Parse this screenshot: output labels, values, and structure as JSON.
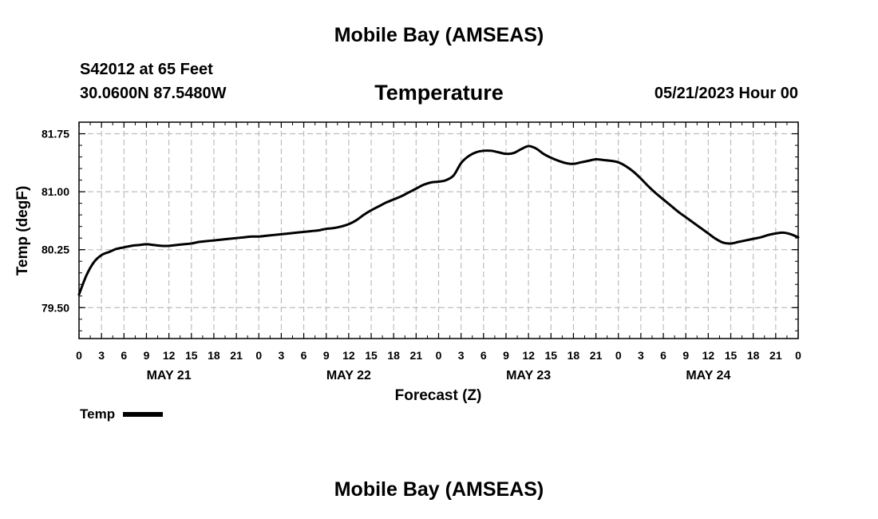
{
  "header": {
    "title": "Mobile Bay (AMSEAS)",
    "station": "S42012 at 65 Feet",
    "coordinates": "30.0600N  87.5480W",
    "variable": "Temperature",
    "run_time": "05/21/2023 Hour 00"
  },
  "footer": {
    "title": "Mobile Bay (AMSEAS)"
  },
  "legend": {
    "label": "Temp",
    "color": "#000000"
  },
  "chart_data": {
    "type": "line",
    "xlabel": "Forecast (Z)",
    "ylabel": "Temp (degF)",
    "xlim": [
      0,
      96
    ],
    "ylim": [
      79.1,
      81.9
    ],
    "yticks": [
      79.5,
      80.25,
      81.0,
      81.75
    ],
    "ytick_labels": [
      "79.50",
      "80.25",
      "81.00",
      "81.75"
    ],
    "xticks": [
      0,
      3,
      6,
      9,
      12,
      15,
      18,
      21,
      24,
      27,
      30,
      33,
      36,
      39,
      42,
      45,
      48,
      51,
      54,
      57,
      60,
      63,
      66,
      69,
      72,
      75,
      78,
      81,
      84,
      87,
      90,
      93,
      96
    ],
    "xtick_labels": [
      "0",
      "3",
      "6",
      "9",
      "12",
      "15",
      "18",
      "21",
      "0",
      "3",
      "6",
      "9",
      "12",
      "15",
      "18",
      "21",
      "0",
      "3",
      "6",
      "9",
      "12",
      "15",
      "18",
      "21",
      "0",
      "3",
      "6",
      "9",
      "12",
      "15",
      "18",
      "21",
      "0"
    ],
    "day_labels": [
      {
        "x": 12,
        "label": "MAY 21"
      },
      {
        "x": 36,
        "label": "MAY 22"
      },
      {
        "x": 60,
        "label": "MAY 23"
      },
      {
        "x": 84,
        "label": "MAY 24"
      }
    ],
    "grid": true,
    "series": [
      {
        "name": "Temp",
        "color": "#000000",
        "x": [
          0,
          1,
          2,
          3,
          4,
          5,
          6,
          7,
          8,
          9,
          10,
          11,
          12,
          13,
          14,
          15,
          16,
          17,
          18,
          19,
          20,
          21,
          22,
          23,
          24,
          25,
          26,
          27,
          28,
          29,
          30,
          31,
          32,
          33,
          34,
          35,
          36,
          37,
          38,
          39,
          40,
          41,
          42,
          43,
          44,
          45,
          46,
          47,
          48,
          49,
          50,
          51,
          52,
          53,
          54,
          55,
          56,
          57,
          58,
          59,
          60,
          61,
          62,
          63,
          64,
          65,
          66,
          67,
          68,
          69,
          70,
          71,
          72,
          73,
          74,
          75,
          76,
          77,
          78,
          79,
          80,
          81,
          82,
          83,
          84,
          85,
          86,
          87,
          88,
          89,
          90,
          91,
          92,
          93,
          94,
          95,
          96
        ],
        "values": [
          79.67,
          79.92,
          80.09,
          80.18,
          80.22,
          80.26,
          80.28,
          80.3,
          80.31,
          80.32,
          80.31,
          80.3,
          80.3,
          80.31,
          80.32,
          80.33,
          80.35,
          80.36,
          80.37,
          80.38,
          80.39,
          80.4,
          80.41,
          80.42,
          80.42,
          80.43,
          80.44,
          80.45,
          80.46,
          80.47,
          80.48,
          80.49,
          80.5,
          80.52,
          80.53,
          80.55,
          80.58,
          80.63,
          80.7,
          80.76,
          80.81,
          80.86,
          80.9,
          80.94,
          80.99,
          81.04,
          81.09,
          81.12,
          81.13,
          81.15,
          81.21,
          81.37,
          81.46,
          81.51,
          81.53,
          81.53,
          81.51,
          81.49,
          81.5,
          81.55,
          81.59,
          81.56,
          81.49,
          81.44,
          81.4,
          81.37,
          81.36,
          81.38,
          81.4,
          81.42,
          81.41,
          81.4,
          81.38,
          81.33,
          81.26,
          81.17,
          81.07,
          80.98,
          80.9,
          80.82,
          80.74,
          80.67,
          80.6,
          80.53,
          80.46,
          80.39,
          80.34,
          80.33,
          80.35,
          80.37,
          80.39,
          80.41,
          80.44,
          80.46,
          80.47,
          80.45,
          80.41
        ]
      }
    ]
  }
}
